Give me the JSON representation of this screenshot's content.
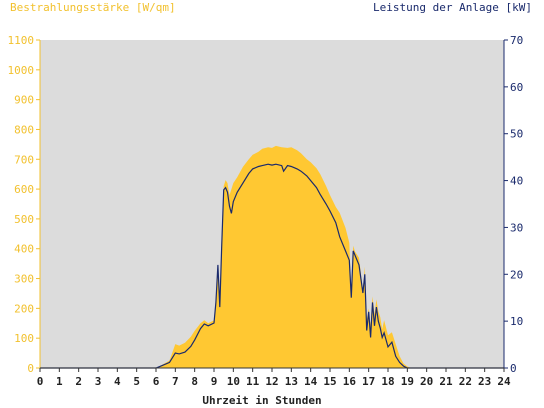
{
  "colors": {
    "background": "#ffffff",
    "plot_area": "#dcdcdc",
    "irradiance_fill": "#ffc832",
    "power_line": "#1a2a6c",
    "left_axis": "#f2c12e",
    "right_axis": "#1a2a6c"
  },
  "chart_data": {
    "type": "area",
    "left_axis_label": "Bestrahlungsstärke [W/qm]",
    "right_axis_label": "Leistung der Anlage [kW]",
    "xlabel": "Uhrzeit in Stunden",
    "xlim": [
      0,
      24
    ],
    "x_ticks": [
      "0",
      "1",
      "2",
      "3",
      "4",
      "5",
      "6",
      "7",
      "8",
      "9",
      "10",
      "11",
      "12",
      "13",
      "14",
      "15",
      "16",
      "17",
      "18",
      "19",
      "20",
      "21",
      "22",
      "23",
      "24"
    ],
    "left_ylim": [
      0,
      1100
    ],
    "left_y_ticks": [
      "0",
      "100",
      "200",
      "300",
      "400",
      "500",
      "600",
      "700",
      "800",
      "900",
      "1000",
      "1100"
    ],
    "right_ylim": [
      0,
      70
    ],
    "right_y_ticks": [
      "0",
      "10",
      "20",
      "30",
      "40",
      "50",
      "60",
      "70"
    ],
    "series": [
      {
        "name": "Bestrahlungsstärke",
        "axis": "left",
        "style": "area",
        "x": [
          0,
          6.0,
          6.3,
          6.7,
          7.0,
          7.2,
          7.5,
          7.8,
          8.0,
          8.3,
          8.5,
          8.7,
          9.0,
          9.1,
          9.2,
          9.3,
          9.4,
          9.5,
          9.6,
          9.7,
          9.8,
          10.0,
          10.2,
          10.5,
          10.8,
          11.0,
          11.3,
          11.5,
          11.8,
          12.0,
          12.2,
          12.5,
          12.8,
          13.0,
          13.3,
          13.5,
          13.8,
          14.0,
          14.3,
          14.5,
          14.8,
          15.0,
          15.3,
          15.5,
          15.8,
          16.0,
          16.1,
          16.2,
          16.3,
          16.5,
          16.7,
          16.8,
          16.9,
          17.0,
          17.1,
          17.2,
          17.3,
          17.4,
          17.5,
          17.6,
          17.7,
          17.8,
          18.0,
          18.2,
          18.4,
          18.6,
          18.8,
          19.0,
          19.2,
          24
        ],
        "y": [
          0,
          0,
          10,
          25,
          80,
          75,
          85,
          105,
          125,
          150,
          160,
          150,
          160,
          240,
          340,
          230,
          450,
          610,
          630,
          620,
          580,
          620,
          640,
          675,
          700,
          715,
          725,
          735,
          740,
          738,
          745,
          740,
          738,
          740,
          730,
          720,
          700,
          690,
          670,
          650,
          610,
          580,
          540,
          520,
          470,
          420,
          250,
          410,
          390,
          370,
          260,
          340,
          160,
          200,
          140,
          240,
          180,
          230,
          190,
          170,
          130,
          160,
          110,
          120,
          80,
          40,
          15,
          5,
          0,
          0
        ]
      },
      {
        "name": "Leistung der Anlage",
        "axis": "right",
        "style": "line",
        "x": [
          0,
          6.0,
          6.3,
          6.7,
          7.0,
          7.2,
          7.5,
          7.8,
          8.0,
          8.3,
          8.5,
          8.7,
          9.0,
          9.1,
          9.2,
          9.3,
          9.4,
          9.5,
          9.6,
          9.7,
          9.8,
          9.9,
          10.0,
          10.2,
          10.5,
          10.8,
          11.0,
          11.3,
          11.5,
          11.8,
          12.0,
          12.2,
          12.5,
          12.6,
          12.8,
          13.0,
          13.3,
          13.5,
          13.8,
          14.0,
          14.3,
          14.5,
          14.8,
          15.0,
          15.3,
          15.5,
          15.8,
          16.0,
          16.1,
          16.2,
          16.3,
          16.5,
          16.7,
          16.8,
          16.9,
          17.0,
          17.1,
          17.2,
          17.3,
          17.4,
          17.5,
          17.6,
          17.7,
          17.8,
          18.0,
          18.2,
          18.4,
          18.6,
          18.8,
          19.0,
          19.2,
          24
        ],
        "y": [
          0,
          0,
          0.5,
          1.2,
          3.2,
          3.0,
          3.4,
          4.6,
          6.0,
          8.4,
          9.4,
          9.0,
          9.6,
          14,
          22,
          13,
          26,
          38,
          38.5,
          37.5,
          34.5,
          33,
          35.5,
          37.5,
          39.5,
          41.5,
          42.5,
          43,
          43.2,
          43.5,
          43.3,
          43.5,
          43.2,
          42,
          43.2,
          43,
          42.5,
          42,
          41,
          40,
          38.5,
          37,
          35,
          33.5,
          31,
          28,
          25,
          23,
          15,
          25,
          24,
          22,
          16,
          20,
          8,
          12,
          6.5,
          14,
          9,
          13,
          10,
          8.5,
          6.5,
          7.5,
          4.5,
          5.5,
          2.5,
          1.2,
          0.4,
          0,
          0,
          0
        ]
      }
    ]
  }
}
